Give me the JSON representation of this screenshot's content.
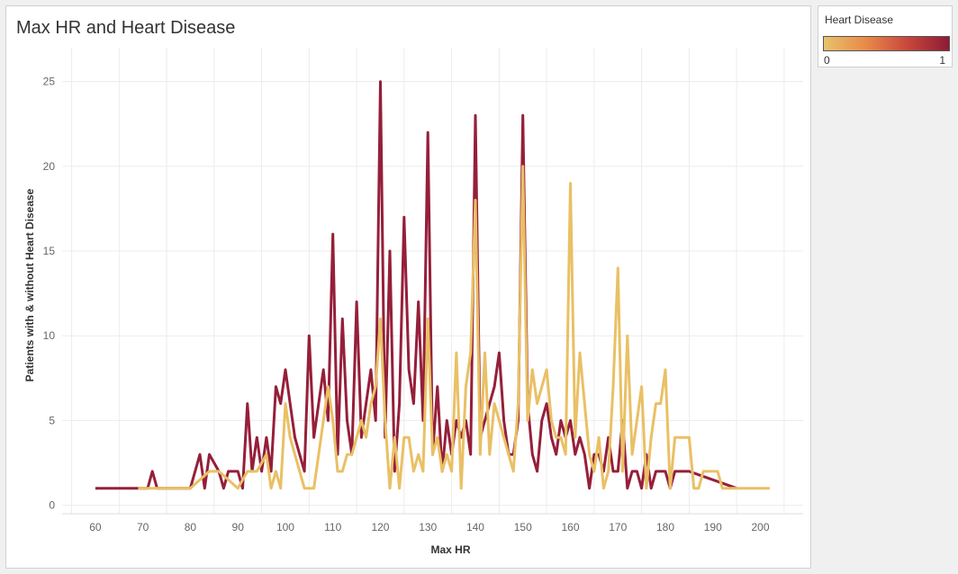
{
  "title": "Max HR and Heart Disease",
  "legend": {
    "title": "Heart Disease",
    "min_label": "0",
    "max_label": "1",
    "gradient": [
      "#e8c36a",
      "#e98a4a",
      "#c8473c",
      "#8e1b35"
    ]
  },
  "colors": {
    "disease_1": "#951f3a",
    "disease_0": "#e9c065",
    "grid": "#ececec"
  },
  "chart_data": {
    "type": "line",
    "title": "Max HR and Heart Disease",
    "xlabel": "Max HR",
    "ylabel": "Patients with & without Heart Disease",
    "xlim": [
      53,
      209
    ],
    "ylim": [
      -0.5,
      27
    ],
    "x_ticks": [
      60,
      70,
      80,
      90,
      100,
      110,
      120,
      130,
      140,
      150,
      160,
      170,
      180,
      190,
      200
    ],
    "y_ticks": [
      0,
      5,
      10,
      15,
      20,
      25
    ],
    "grid": true,
    "legend_position": "top-right",
    "series": [
      {
        "name": "1",
        "color": "#951f3a",
        "x": [
          60,
          63,
          67,
          69,
          70,
          71,
          72,
          73,
          80,
          81,
          82,
          83,
          84,
          86,
          87,
          88,
          89,
          90,
          91,
          92,
          93,
          94,
          95,
          96,
          97,
          98,
          99,
          100,
          101,
          102,
          103,
          104,
          105,
          106,
          107,
          108,
          109,
          110,
          111,
          112,
          113,
          114,
          115,
          116,
          117,
          118,
          119,
          120,
          121,
          122,
          123,
          124,
          125,
          126,
          127,
          128,
          129,
          130,
          131,
          132,
          133,
          134,
          135,
          136,
          137,
          138,
          139,
          140,
          141,
          142,
          143,
          144,
          145,
          146,
          147,
          148,
          149,
          150,
          151,
          152,
          153,
          154,
          155,
          156,
          157,
          158,
          159,
          160,
          161,
          162,
          163,
          164,
          165,
          166,
          167,
          168,
          169,
          170,
          171,
          172,
          173,
          174,
          175,
          176,
          177,
          178,
          179,
          180,
          181,
          182,
          185,
          187,
          190,
          195
        ],
        "y": [
          1,
          1,
          1,
          1,
          1,
          1,
          2,
          1,
          1,
          2,
          3,
          1,
          3,
          2,
          1,
          2,
          2,
          2,
          1,
          6,
          2,
          4,
          2,
          4,
          2,
          7,
          6,
          8,
          6,
          4,
          3,
          2,
          10,
          4,
          6,
          8,
          5,
          16,
          3,
          11,
          5,
          3,
          12,
          4,
          6,
          8,
          5,
          25,
          4,
          15,
          2,
          6,
          17,
          8,
          6,
          12,
          5,
          22,
          3,
          7,
          2,
          5,
          3,
          5,
          4,
          5,
          3,
          23,
          4,
          5,
          6,
          7,
          9,
          5,
          3,
          3,
          5,
          23,
          6,
          3,
          2,
          5,
          6,
          4,
          3,
          5,
          4,
          5,
          3,
          4,
          3,
          1,
          3,
          3,
          2,
          4,
          2,
          2,
          5,
          1,
          2,
          2,
          1,
          3,
          1,
          2,
          2,
          2,
          1,
          2,
          2,
          1.8,
          1.5,
          1
        ]
      },
      {
        "name": "0",
        "color": "#e9c065",
        "x": [
          69,
          71,
          73,
          76,
          80,
          82,
          84,
          86,
          88,
          90,
          92,
          94,
          96,
          97,
          98,
          99,
          100,
          101,
          102,
          103,
          104,
          105,
          106,
          107,
          108,
          109,
          110,
          111,
          112,
          113,
          114,
          115,
          116,
          117,
          118,
          119,
          120,
          121,
          122,
          123,
          124,
          125,
          126,
          127,
          128,
          129,
          130,
          131,
          132,
          133,
          134,
          135,
          136,
          137,
          138,
          139,
          140,
          141,
          142,
          143,
          144,
          145,
          146,
          147,
          148,
          149,
          150,
          151,
          152,
          153,
          154,
          155,
          156,
          157,
          158,
          159,
          160,
          161,
          162,
          163,
          164,
          165,
          166,
          167,
          168,
          169,
          170,
          171,
          172,
          173,
          174,
          175,
          176,
          177,
          178,
          179,
          180,
          181,
          182,
          183,
          184,
          185,
          186,
          187,
          188,
          189,
          190,
          191,
          192,
          193,
          195,
          197,
          200,
          202
        ],
        "y": [
          1,
          1,
          1,
          1,
          1,
          1.5,
          2,
          2,
          1.5,
          1,
          2,
          2,
          3,
          1,
          2,
          1,
          6,
          4,
          3,
          2,
          1,
          1,
          1,
          3,
          5,
          7,
          5,
          2,
          2,
          3,
          3,
          4,
          5,
          4,
          6,
          7,
          11,
          5,
          1,
          4,
          1,
          4,
          4,
          2,
          3,
          2,
          11,
          3,
          4,
          2,
          3,
          2,
          9,
          1,
          7,
          9,
          18,
          3,
          9,
          3,
          6,
          5,
          4,
          3,
          2,
          6,
          20,
          5,
          8,
          6,
          7,
          8,
          5,
          4,
          4,
          3,
          19,
          4,
          9,
          6,
          3,
          2,
          4,
          1,
          2,
          7,
          14,
          2,
          10,
          3,
          5,
          7,
          1,
          4,
          6,
          6,
          8,
          1,
          4,
          4,
          4,
          4,
          1,
          1,
          2,
          2,
          2,
          2,
          1,
          1,
          1,
          1,
          1,
          1
        ]
      }
    ]
  }
}
